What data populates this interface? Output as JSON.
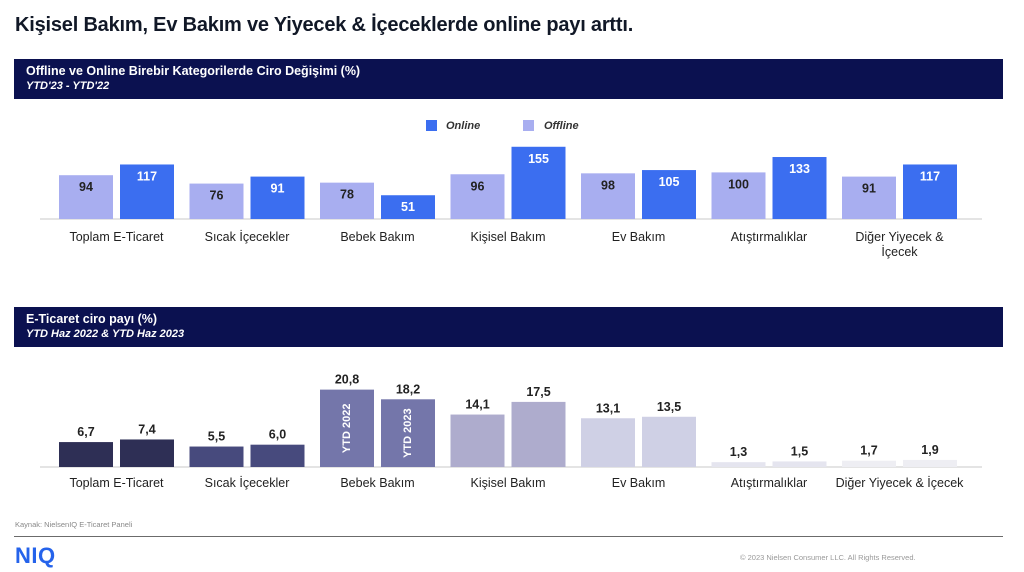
{
  "headline": "Kişisel Bakım, Ev Bakım ve Yiyecek & İçeceklerde online payı arttı.",
  "colors": {
    "band": "#0b1150",
    "online": "#3b6ef0",
    "offline": "#a8aef0",
    "category_pairs": [
      "#2e2f55",
      "#474a7d",
      "#7476aa",
      "#aeaccd",
      "#cfd0e5",
      "#e5e5ef",
      "#eeeef3"
    ]
  },
  "chart1": {
    "title": "Offline ve Online Birebir Kategorilerde Ciro Değişimi (%)",
    "subtitle": "YTD'23 - YTD'22",
    "legend": {
      "online": "Online",
      "offline": "Offline"
    }
  },
  "chart2": {
    "title": "E-Ticaret ciro payı (%)",
    "subtitle": "YTD Haz 2022 & YTD Haz 2023",
    "bar_labels": [
      "YTD 2022",
      "YTD 2023"
    ]
  },
  "chart_data": [
    {
      "type": "bar",
      "title": "Offline ve Online Birebir Kategorilerde Ciro Değişimi (%)",
      "subtitle": "YTD'23 - YTD'22",
      "categories": [
        "Toplam E-Ticaret",
        "Sıcak İçecekler",
        "Bebek Bakım",
        "Kişisel Bakım",
        "Ev Bakım",
        "Atıştırmalıklar",
        "Diğer Yiyecek & İçecek"
      ],
      "series": [
        {
          "name": "Offline",
          "values": [
            94,
            76,
            78,
            96,
            98,
            100,
            91
          ]
        },
        {
          "name": "Online",
          "values": [
            117,
            91,
            51,
            155,
            105,
            133,
            117
          ]
        }
      ],
      "ylim": [
        0,
        160
      ],
      "legend": "top-center",
      "grid": false
    },
    {
      "type": "bar",
      "title": "E-Ticaret ciro payı (%)",
      "subtitle": "YTD Haz 2022 & YTD Haz 2023",
      "categories": [
        "Toplam E-Ticaret",
        "Sıcak İçecekler",
        "Bebek Bakım",
        "Kişisel Bakım",
        "Ev Bakım",
        "Atıştırmalıklar",
        "Diğer Yiyecek & İçecek"
      ],
      "series": [
        {
          "name": "YTD 2022",
          "values": [
            6.7,
            5.5,
            20.8,
            14.1,
            13.1,
            1.3,
            1.7
          ],
          "labels": [
            "6,7",
            "5,5",
            "20,8",
            "14,1",
            "13,1",
            "1,3",
            "1,7"
          ]
        },
        {
          "name": "YTD 2023",
          "values": [
            7.4,
            6.0,
            18.2,
            17.5,
            13.5,
            1.5,
            1.9
          ],
          "labels": [
            "7,4",
            "6,0",
            "18,2",
            "17,5",
            "13,5",
            "1,5",
            "1,9"
          ]
        }
      ],
      "ylim": [
        0,
        22
      ],
      "grid": false
    }
  ],
  "source": "Kaynak: NielsenIQ E-Ticaret Paneli",
  "logo": "NIQ",
  "copyright": "© 2023 Nielsen Consumer LLC. All Rights Reserved."
}
